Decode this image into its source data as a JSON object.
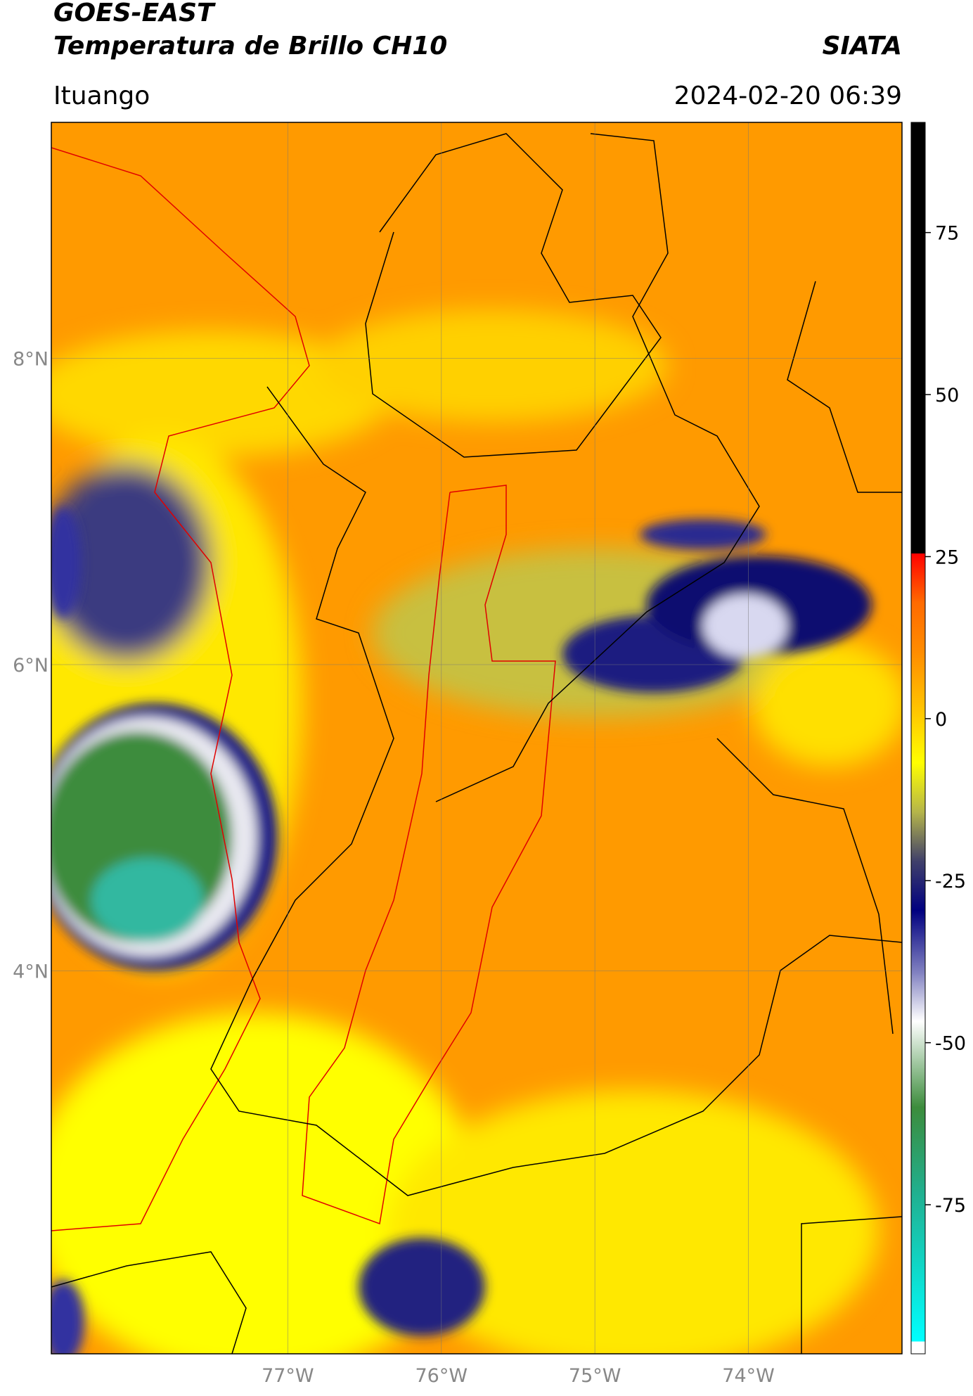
{
  "header": {
    "title": "GOES-EAST",
    "subtitle": "Temperatura de Brillo CH10",
    "agency": "SIATA",
    "location": "Ituango",
    "datetime": "2024-02-20 06:39"
  },
  "map": {
    "lat_range": [
      1.5,
      9.54
    ],
    "lon_range": [
      -78.54,
      -73.0
    ],
    "lat_ticks": [
      {
        "value": 8,
        "label": "8°N"
      },
      {
        "value": 6,
        "label": "6°N"
      },
      {
        "value": 4,
        "label": "4°N"
      }
    ],
    "lon_ticks": [
      {
        "value": -77,
        "label": "77°W"
      },
      {
        "value": -76,
        "label": "76°W"
      },
      {
        "value": -75,
        "label": "75°W"
      },
      {
        "value": -74,
        "label": "74°W"
      }
    ]
  },
  "colorbar": {
    "range": [
      -98,
      92
    ],
    "ticks": [
      75,
      50,
      25,
      0,
      -25,
      -50,
      -75
    ]
  }
}
